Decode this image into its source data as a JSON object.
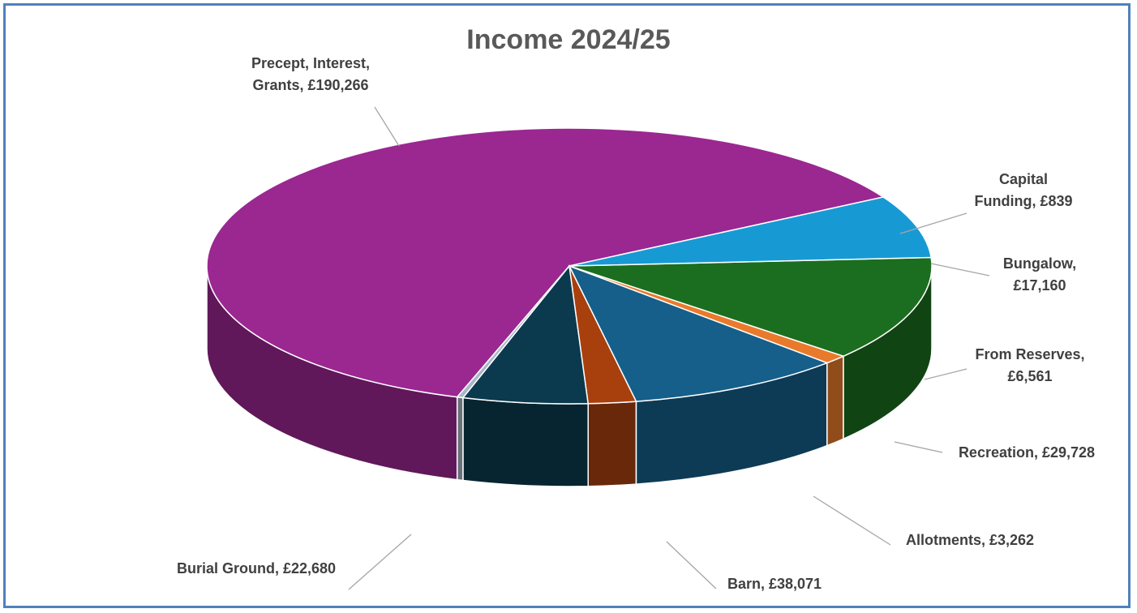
{
  "chart_data": {
    "type": "pie",
    "title": "Income 2024/25",
    "currency": "£",
    "slices": [
      {
        "name": "Precept, Interest, Grants",
        "value": 190266,
        "color": "#9b2791"
      },
      {
        "name": "Capital Funding",
        "value": 839,
        "color": "#a9b8c8"
      },
      {
        "name": "Bungalow",
        "value": 17160,
        "color": "#0b3a4f"
      },
      {
        "name": "From Reserves",
        "value": 6561,
        "color": "#a8400e"
      },
      {
        "name": "Recreation",
        "value": 29728,
        "color": "#155f8a"
      },
      {
        "name": "Allotments",
        "value": 3262,
        "color": "#e97a2c"
      },
      {
        "name": "Barn",
        "value": 38071,
        "color": "#1b6e1f"
      },
      {
        "name": "Burial Ground",
        "value": 22680,
        "color": "#179ad4"
      }
    ],
    "labels": [
      {
        "lines": [
          "Precept, Interest,",
          "Grants, £190,266"
        ]
      },
      {
        "lines": [
          "Capital",
          "Funding, £839"
        ]
      },
      {
        "lines": [
          "Bungalow,",
          "£17,160"
        ]
      },
      {
        "lines": [
          "From Reserves,",
          "£6,561"
        ]
      },
      {
        "lines": [
          "Recreation, £29,728"
        ]
      },
      {
        "lines": [
          "Allotments, £3,262"
        ]
      },
      {
        "lines": [
          "Barn, £38,071"
        ]
      },
      {
        "lines": [
          "Burial Ground, £22,680"
        ]
      }
    ]
  }
}
